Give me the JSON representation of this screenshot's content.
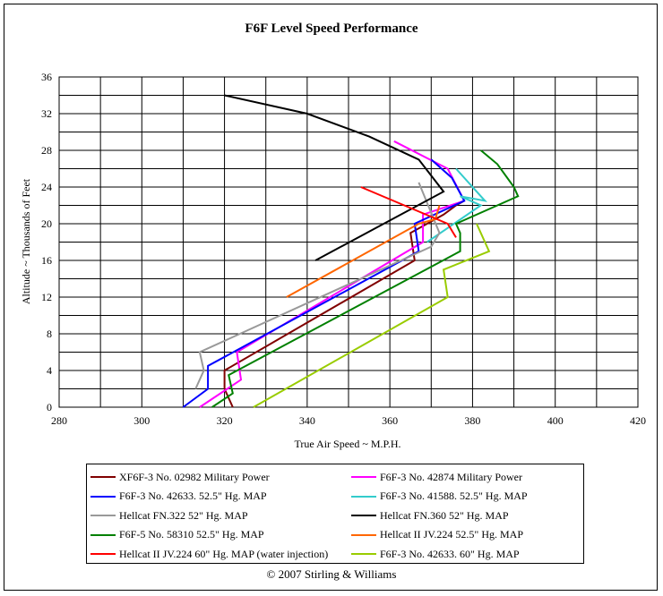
{
  "chart_data": {
    "type": "line",
    "title": "F6F Level Speed Performance",
    "xlabel": "True Air Speed ~ M.P.H.",
    "ylabel": "Altitude ~ Thousands of Feet",
    "xlim": [
      280,
      420
    ],
    "ylim": [
      0,
      36
    ],
    "xticks": [
      280,
      300,
      320,
      340,
      360,
      380,
      400,
      420
    ],
    "yticks": [
      0,
      4,
      8,
      12,
      16,
      20,
      24,
      28,
      32,
      36
    ],
    "grid": true,
    "legend_position": "bottom",
    "series": [
      {
        "name": "XF6F-3 No. 02982 Military Power",
        "color": "#800000",
        "x": [
          322,
          320,
          320,
          366,
          365,
          373,
          376,
          378
        ],
        "y": [
          0,
          2,
          4,
          16,
          19,
          21,
          22,
          22.5
        ]
      },
      {
        "name": "F6F-3 No. 42874 Military Power",
        "color": "#ff00ff",
        "x": [
          314,
          324,
          323,
          368,
          368,
          378,
          374,
          361
        ],
        "y": [
          0,
          3,
          6,
          18,
          21,
          22.5,
          26,
          29
        ]
      },
      {
        "name": "F6F-3 No. 42633.  52.5\" Hg. MAP",
        "color": "#0000ff",
        "x": [
          310,
          316,
          316,
          367,
          366,
          378,
          375,
          370
        ],
        "y": [
          0,
          2,
          4.5,
          17,
          20,
          22.5,
          25,
          27
        ]
      },
      {
        "name": "F6F-3 No. 41588.  52.5\" Hg. MAP",
        "color": "#33cccc",
        "x": [
          369,
          382,
          377,
          383,
          376
        ],
        "y": [
          18,
          22,
          23,
          22.5,
          26
        ]
      },
      {
        "name": "Hellcat FN.322 52\" Hg.  MAP",
        "color": "#999999",
        "x": [
          313,
          315,
          314,
          370,
          372,
          367
        ],
        "y": [
          2,
          4,
          6,
          17.5,
          19,
          24.5
        ]
      },
      {
        "name": "Hellcat FN.360  52\" Hg.  MAP",
        "color": "#000000",
        "x": [
          342,
          373,
          367,
          355,
          340,
          320
        ],
        "y": [
          16,
          23.5,
          27,
          29.5,
          32,
          34
        ]
      },
      {
        "name": "F6F-5 No. 58310  52.5\" Hg. MAP",
        "color": "#008000",
        "x": [
          317,
          322,
          321,
          377,
          377,
          376,
          391,
          390,
          386,
          382
        ],
        "y": [
          0,
          1.5,
          3.5,
          17,
          19,
          20,
          23,
          24,
          26.5,
          28
        ]
      },
      {
        "name": "Hellcat II  JV.224 52.5\" Hg. MAP",
        "color": "#ff6600",
        "x": [
          335,
          367,
          371,
          372
        ],
        "y": [
          12,
          20,
          20.5,
          22
        ]
      },
      {
        "name": "Hellcat II  JV.224 60\" Hg. MAP (water injection)",
        "color": "#ff0000",
        "x": [
          376,
          374,
          353
        ],
        "y": [
          18.5,
          20,
          24
        ]
      },
      {
        "name": "F6F-3 No. 42633.  60\" Hg. MAP",
        "color": "#99cc00",
        "x": [
          327,
          374,
          373,
          384,
          381
        ],
        "y": [
          0,
          12,
          15,
          17,
          20
        ]
      }
    ]
  },
  "copyright": "© 2007 Stirling & Williams"
}
